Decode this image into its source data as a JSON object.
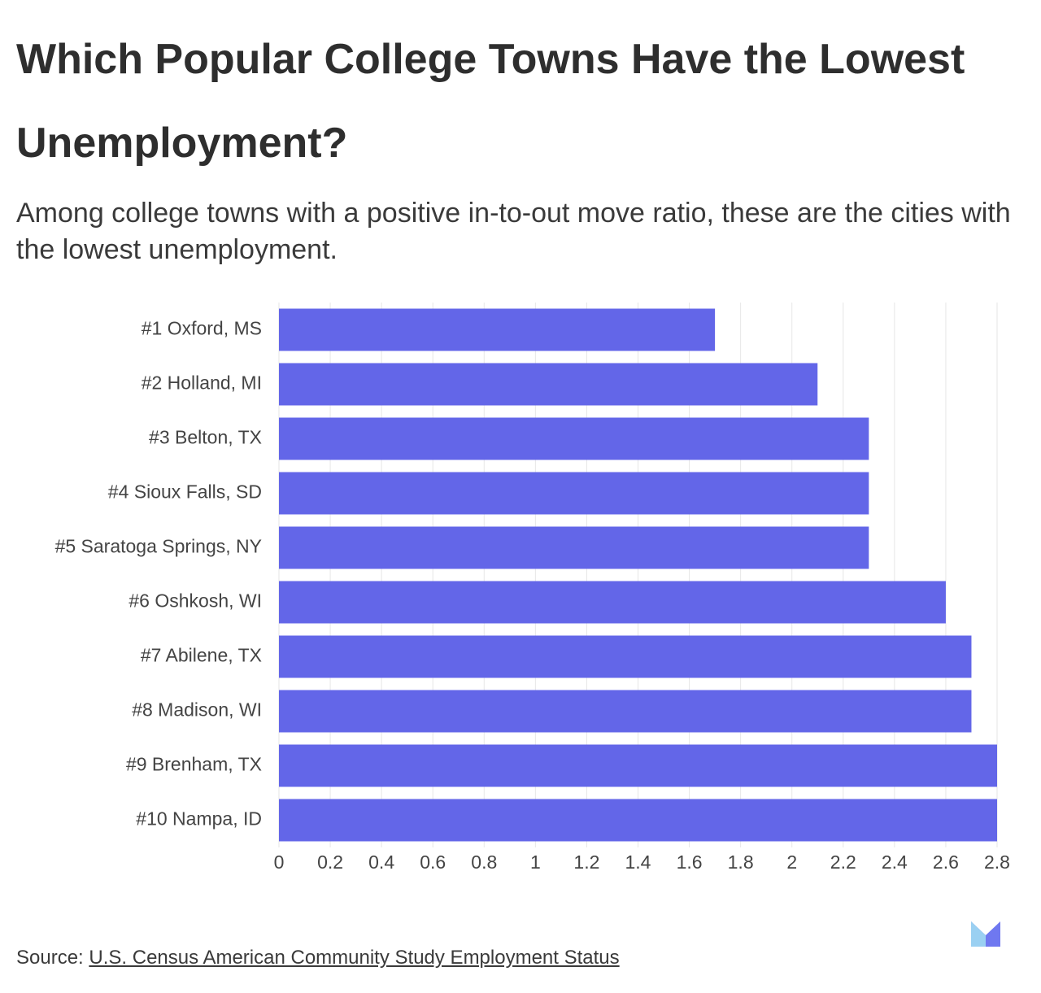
{
  "chart_data": {
    "type": "hbar",
    "title": "Which Popular College Towns Have the Lowest Unemployment?",
    "subtitle": "Among college towns with a positive in-to-out move ratio, these are the cities with the lowest unemployment.",
    "categories": [
      "#1 Oxford, MS",
      "#2 Holland, MI",
      "#3 Belton, TX",
      "#4 Sioux Falls, SD",
      "#5 Saratoga Springs, NY",
      "#6 Oshkosh, WI",
      "#7 Abilene, TX",
      "#8 Madison, WI",
      "#9 Brenham, TX",
      "#10 Nampa, ID"
    ],
    "values": [
      1.7,
      2.1,
      2.3,
      2.3,
      2.3,
      2.6,
      2.7,
      2.7,
      2.8,
      2.8
    ],
    "color": "#6366e8",
    "xlim": [
      0,
      2.8
    ],
    "xticks": [
      0,
      0.2,
      0.4,
      0.6,
      0.8,
      1,
      1.2,
      1.4,
      1.6,
      1.8,
      2,
      2.2,
      2.4,
      2.6,
      2.8
    ],
    "grid": true,
    "source_label": "Source:",
    "source": "U.S. Census American Community Study Employment Status"
  }
}
